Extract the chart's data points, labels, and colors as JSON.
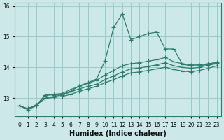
{
  "xlabel": "Humidex (Indice chaleur)",
  "background_color": "#cce8e8",
  "grid_color": "#99cccc",
  "line_color": "#2d7d6e",
  "x_values": [
    0,
    1,
    2,
    3,
    4,
    5,
    6,
    7,
    8,
    9,
    10,
    11,
    12,
    13,
    14,
    15,
    16,
    17,
    18,
    19,
    20,
    21,
    22,
    23
  ],
  "series": [
    [
      12.75,
      12.62,
      12.75,
      13.1,
      13.1,
      13.12,
      13.22,
      13.4,
      13.5,
      13.62,
      14.22,
      15.3,
      15.75,
      14.9,
      15.0,
      15.1,
      15.15,
      14.6,
      14.6,
      14.1,
      14.05,
      14.05,
      14.1,
      14.15
    ],
    [
      12.75,
      12.65,
      12.78,
      13.08,
      13.12,
      13.15,
      13.28,
      13.38,
      13.48,
      13.58,
      13.75,
      13.9,
      14.05,
      14.12,
      14.15,
      14.2,
      14.25,
      14.32,
      14.18,
      14.12,
      14.08,
      14.08,
      14.12,
      14.16
    ],
    [
      12.75,
      12.65,
      12.78,
      13.0,
      13.05,
      13.1,
      13.2,
      13.3,
      13.38,
      13.45,
      13.6,
      13.72,
      13.85,
      13.95,
      13.98,
      14.03,
      14.08,
      14.15,
      14.05,
      14.0,
      13.97,
      14.0,
      14.07,
      14.12
    ],
    [
      12.75,
      12.65,
      12.78,
      12.98,
      13.02,
      13.05,
      13.12,
      13.22,
      13.3,
      13.38,
      13.5,
      13.6,
      13.72,
      13.82,
      13.85,
      13.9,
      13.95,
      14.0,
      13.93,
      13.88,
      13.85,
      13.9,
      13.97,
      14.05
    ]
  ],
  "ylim": [
    12.4,
    16.1
  ],
  "yticks": [
    13,
    14,
    15,
    16
  ],
  "xticks": [
    0,
    1,
    2,
    3,
    4,
    5,
    6,
    7,
    8,
    9,
    10,
    11,
    12,
    13,
    14,
    15,
    16,
    17,
    18,
    19,
    20,
    21,
    22,
    23
  ],
  "marker": "+",
  "markersize": 4,
  "linewidth": 0.9
}
